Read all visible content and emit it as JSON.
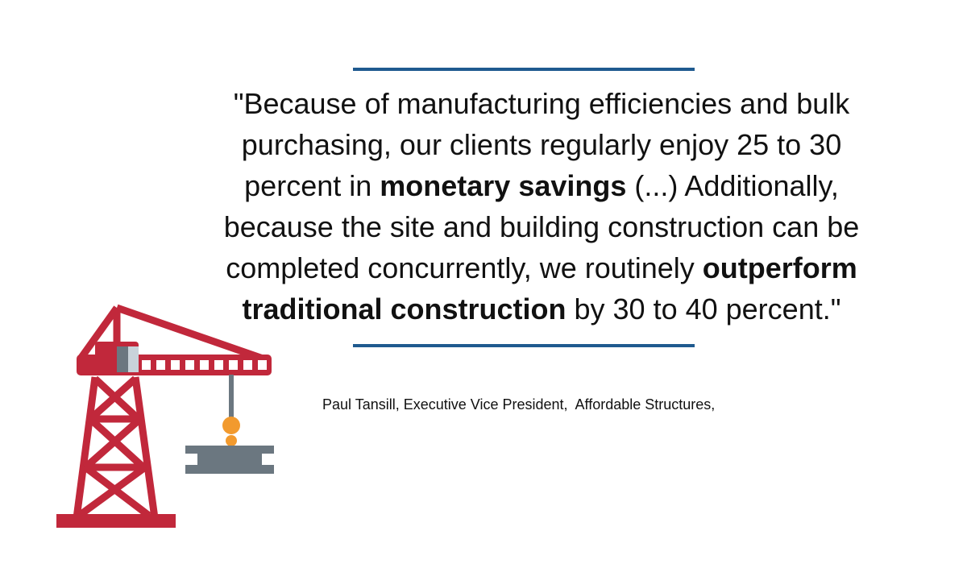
{
  "quote": {
    "lines": [
      [
        {
          "text": "\"Because of manufacturing efficiencies and bulk",
          "bold": false
        }
      ],
      [
        {
          "text": "purchasing, our clients regularly enjoy 25 to 30",
          "bold": false
        }
      ],
      [
        {
          "text": "percent in ",
          "bold": false
        },
        {
          "text": "monetary savings",
          "bold": true
        },
        {
          "text": " (...) Additionally,",
          "bold": false
        }
      ],
      [
        {
          "text": "because the site and building construction can be",
          "bold": false
        }
      ],
      [
        {
          "text": "completed concurrently, we routinely ",
          "bold": false
        },
        {
          "text": "outperform",
          "bold": true
        }
      ],
      [
        {
          "text": "traditional construction",
          "bold": true
        },
        {
          "text": " by 30 to 40 percent.\"",
          "bold": false
        }
      ]
    ]
  },
  "attribution": "Paul Tansill, Executive Vice President,  Affordable Structures,"
}
